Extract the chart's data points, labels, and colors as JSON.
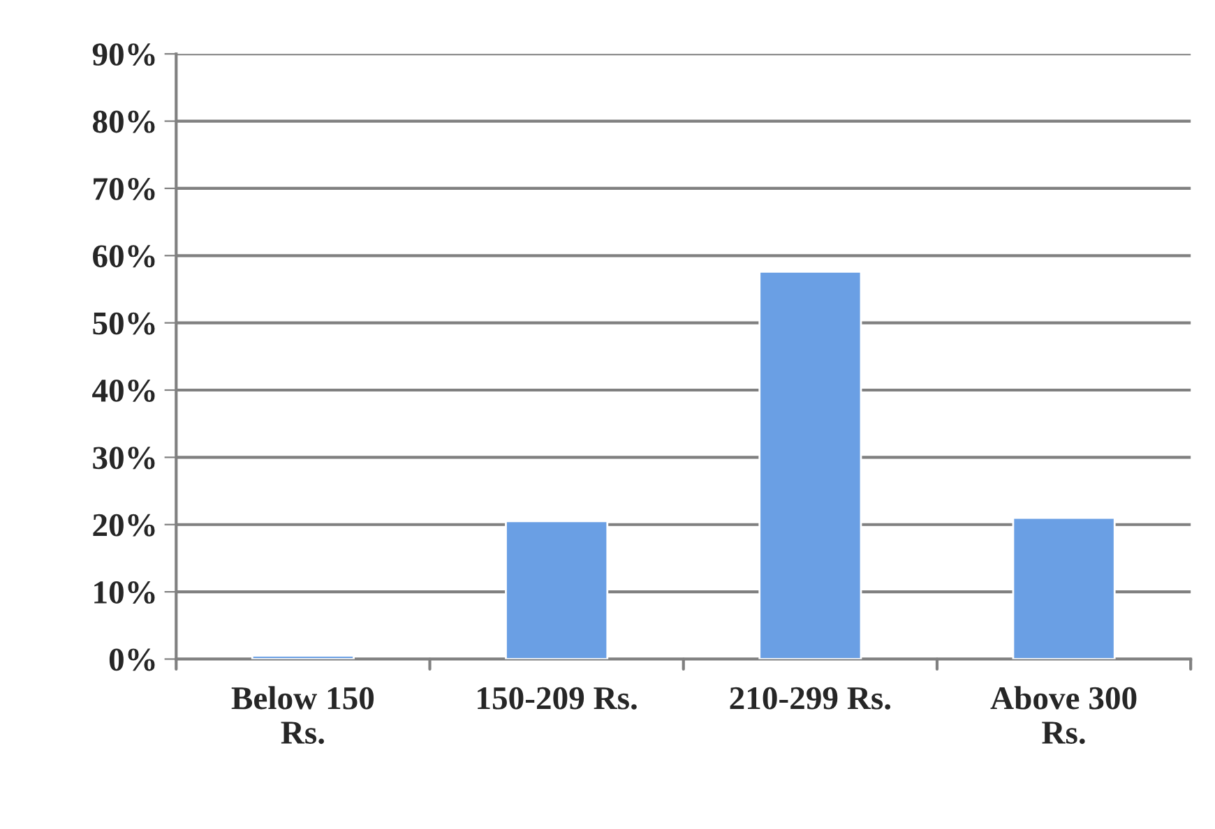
{
  "chart_data": {
    "type": "bar",
    "categories": [
      "Below 150\nRs.",
      "150-209 Rs.",
      "210-299 Rs.",
      "Above 300\nRs."
    ],
    "values": [
      0.5,
      20.5,
      57.6,
      21.0
    ],
    "color": "#6a9fe4",
    "ylim": [
      0,
      90
    ],
    "yticks": [
      {
        "value": 0,
        "label": "0%"
      },
      {
        "value": 10,
        "label": "10%"
      },
      {
        "value": 20,
        "label": "20%"
      },
      {
        "value": 30,
        "label": "30%"
      },
      {
        "value": 40,
        "label": "40%"
      },
      {
        "value": 50,
        "label": "50%"
      },
      {
        "value": 60,
        "label": "60%"
      },
      {
        "value": 70,
        "label": "70%"
      },
      {
        "value": 80,
        "label": "80%"
      },
      {
        "value": 90,
        "label": "90%"
      }
    ],
    "grid": "y",
    "legend": false
  }
}
